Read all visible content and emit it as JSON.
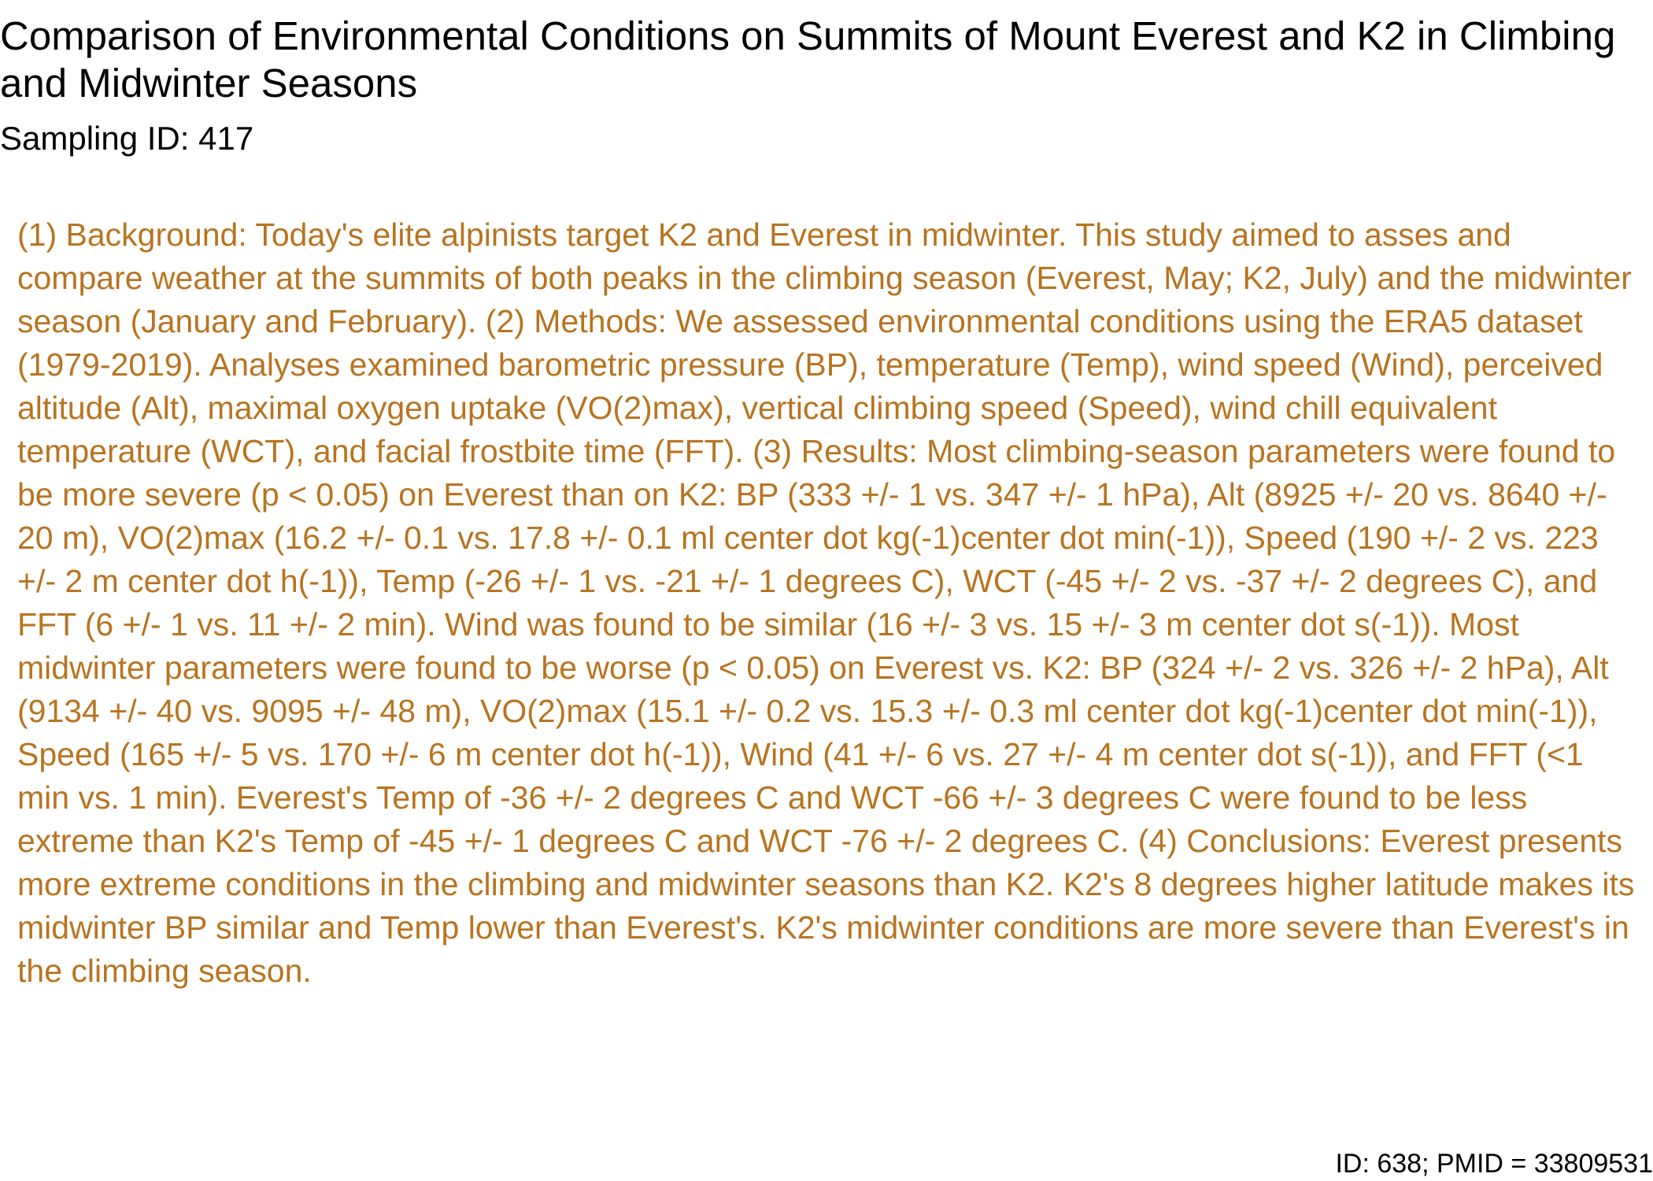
{
  "document": {
    "title": "Comparison of Environmental Conditions on Summits of Mount Everest and K2 in Climbing and Midwinter Seasons",
    "sampling_id": "Sampling ID: 417",
    "abstract": "(1) Background: Today's elite alpinists target K2 and Everest in midwinter. This study aimed to asses and compare weather at the summits of both peaks in the climbing season (Everest, May; K2, July) and the midwinter season (January and February). (2) Methods: We assessed environmental conditions using the ERA5 dataset (1979-2019). Analyses examined barometric pressure (BP), temperature (Temp), wind speed (Wind), perceived altitude (Alt), maximal oxygen uptake (VO(2)max), vertical climbing speed (Speed), wind chill equivalent temperature (WCT), and facial frostbite time (FFT). (3) Results: Most climbing-season parameters were found to be more severe (p < 0.05) on Everest than on K2: BP (333 +/- 1 vs. 347 +/- 1 hPa), Alt (8925 +/- 20 vs. 8640 +/- 20 m), VO(2)max (16.2 +/- 0.1 vs. 17.8 +/- 0.1 ml center dot kg(-1)center dot min(-1)), Speed (190 +/- 2 vs. 223 +/- 2 m center dot h(-1)), Temp (-26 +/- 1 vs. -21 +/- 1 degrees C), WCT (-45 +/- 2 vs. -37 +/- 2 degrees C), and FFT (6 +/- 1 vs. 11 +/- 2 min). Wind was found to be similar (16 +/- 3 vs. 15 +/- 3 m center dot s(-1)). Most midwinter parameters were found to be worse (p < 0.05) on Everest vs. K2: BP (324 +/- 2 vs. 326 +/- 2 hPa), Alt (9134 +/- 40 vs. 9095 +/- 48 m), VO(2)max (15.1 +/- 0.2 vs. 15.3 +/- 0.3 ml center dot kg(-1)center dot min(-1)), Speed (165 +/- 5 vs. 170 +/- 6 m center dot h(-1)), Wind (41 +/- 6 vs. 27 +/- 4 m center dot s(-1)), and FFT (<1 min vs. 1 min). Everest's Temp of -36 +/- 2 degrees C and WCT -66 +/- 3 degrees C were found to be less extreme than K2's Temp of -45 +/- 1 degrees C and WCT -76 +/- 2 degrees C. (4) Conclusions: Everest presents more extreme conditions in the climbing and midwinter seasons than K2. K2's 8 degrees higher latitude makes its midwinter BP similar and Temp lower than Everest's. K2's midwinter conditions are more severe than Everest's in the climbing season.",
    "footer_id": "ID: 638; PMID = 33809531"
  },
  "colors": {
    "abstract_text": "#b87420",
    "heading_text": "#000000",
    "background": "#ffffff"
  }
}
